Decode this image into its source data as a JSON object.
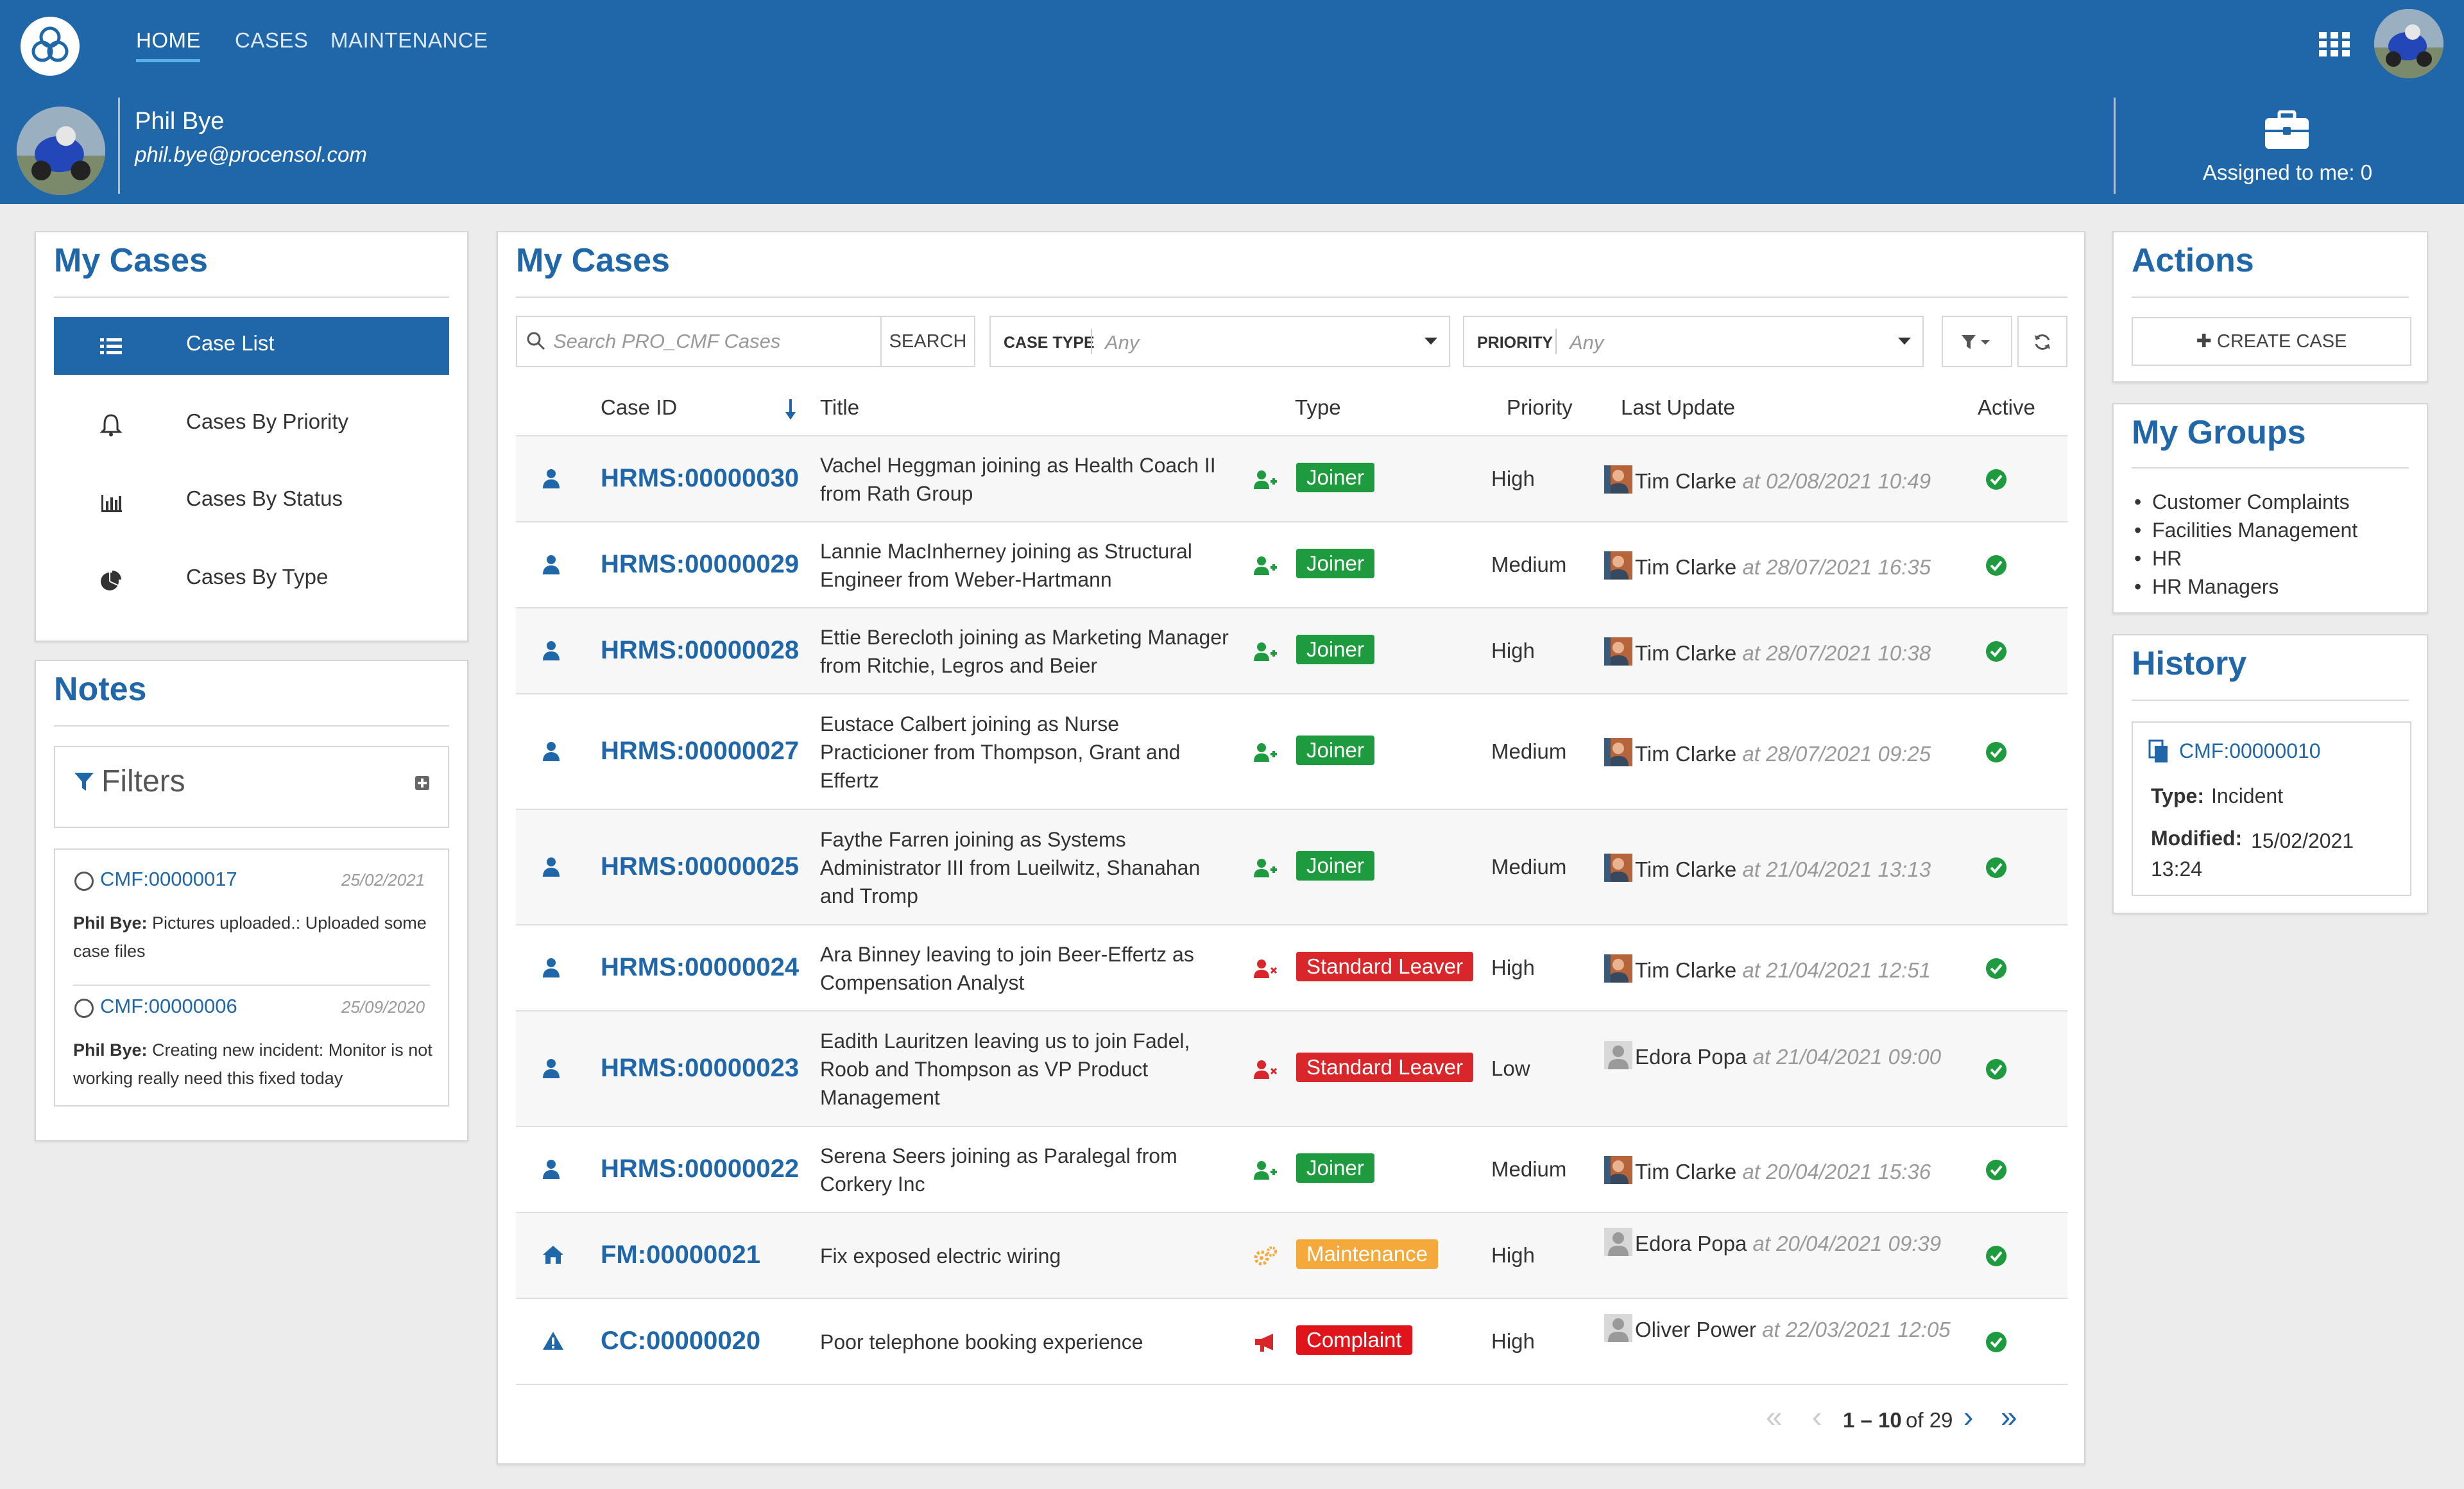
{
  "nav": {
    "items": [
      {
        "label": "HOME",
        "active": true
      },
      {
        "label": "CASES",
        "active": false
      },
      {
        "label": "MAINTENANCE",
        "active": false
      }
    ]
  },
  "user": {
    "name": "Phil Bye",
    "email": "phil.bye@procensol.com",
    "assigned_label": "Assigned to me: 0"
  },
  "sidebar": {
    "title": "My Cases",
    "items": [
      {
        "label": "Case List",
        "icon": "list-icon",
        "selected": true
      },
      {
        "label": "Cases By Priority",
        "icon": "bell-icon",
        "selected": false
      },
      {
        "label": "Cases By Status",
        "icon": "bar-chart-icon",
        "selected": false
      },
      {
        "label": "Cases By Type",
        "icon": "pie-chart-icon",
        "selected": false
      }
    ]
  },
  "notes": {
    "title": "Notes",
    "filters_label": "Filters",
    "items": [
      {
        "case": "CMF:00000017",
        "date": "25/02/2021",
        "author": "Phil Bye:",
        "text": "Pictures uploaded.: Uploaded some case files"
      },
      {
        "case": "CMF:00000006",
        "date": "25/09/2020",
        "author": "Phil Bye:",
        "text": "Creating new incident: Monitor is not working really need this fixed today"
      }
    ]
  },
  "main": {
    "title": "My Cases",
    "search_placeholder": "Search PRO_CMF Cases",
    "search_button": "SEARCH",
    "case_type_label": "CASE TYPE",
    "case_type_value": "Any",
    "priority_label": "PRIORITY",
    "priority_value": "Any",
    "columns": [
      "Case ID",
      "Title",
      "Type",
      "Priority",
      "Last Update",
      "Active"
    ],
    "rows": [
      {
        "icon": "person-icon",
        "id": "HRMS:00000030",
        "title": "Vachel Heggman joining as Health Coach II from Rath Group",
        "type_icon": "user-plus-icon",
        "type": "Joiner",
        "type_color": "#1e9b3e",
        "priority": "High",
        "user": "Tim Clarke",
        "at": "at 02/08/2021 10:49",
        "user_avatar": "photo"
      },
      {
        "icon": "person-icon",
        "id": "HRMS:00000029",
        "title": "Lannie MacInherney joining as Structural Engineer from Weber-Hartmann",
        "type_icon": "user-plus-icon",
        "type": "Joiner",
        "type_color": "#1e9b3e",
        "priority": "Medium",
        "user": "Tim Clarke",
        "at": "at 28/07/2021 16:35",
        "user_avatar": "photo"
      },
      {
        "icon": "person-icon",
        "id": "HRMS:00000028",
        "title": "Ettie Berecloth joining as Marketing Manager from Ritchie, Legros and Beier",
        "type_icon": "user-plus-icon",
        "type": "Joiner",
        "type_color": "#1e9b3e",
        "priority": "High",
        "user": "Tim Clarke",
        "at": "at 28/07/2021 10:38",
        "user_avatar": "photo"
      },
      {
        "icon": "person-icon",
        "id": "HRMS:00000027",
        "title": "Eustace Calbert joining as Nurse Practicioner from Thompson, Grant and Effertz",
        "type_icon": "user-plus-icon",
        "type": "Joiner",
        "type_color": "#1e9b3e",
        "priority": "Medium",
        "user": "Tim Clarke",
        "at": "at 28/07/2021 09:25",
        "user_avatar": "photo"
      },
      {
        "icon": "person-icon",
        "id": "HRMS:00000025",
        "title": "Faythe Farren joining as Systems Administrator III from Lueilwitz, Shanahan and Tromp",
        "type_icon": "user-plus-icon",
        "type": "Joiner",
        "type_color": "#1e9b3e",
        "priority": "Medium",
        "user": "Tim Clarke",
        "at": "at 21/04/2021 13:13",
        "user_avatar": "photo"
      },
      {
        "icon": "person-icon",
        "id": "HRMS:00000024",
        "title": "Ara Binney leaving to join Beer-Effertz as Compensation Analyst",
        "type_icon": "user-x-icon",
        "type": "Standard Leaver",
        "type_color": "#d9262a",
        "priority": "High",
        "user": "Tim Clarke",
        "at": "at 21/04/2021 12:51",
        "user_avatar": "photo"
      },
      {
        "icon": "person-icon",
        "id": "HRMS:00000023",
        "title": "Eadith Lauritzen leaving us to join Fadel, Roob and Thompson as VP Product Management",
        "type_icon": "user-x-icon",
        "type": "Standard Leaver",
        "type_color": "#d9262a",
        "priority": "Low",
        "user": "Edora Popa",
        "at": "at 21/04/2021 09:00",
        "user_avatar": "default"
      },
      {
        "icon": "person-icon",
        "id": "HRMS:00000022",
        "title": "Serena Seers joining as Paralegal from Corkery Inc",
        "type_icon": "user-plus-icon",
        "type": "Joiner",
        "type_color": "#1e9b3e",
        "priority": "Medium",
        "user": "Tim Clarke",
        "at": "at 20/04/2021 15:36",
        "user_avatar": "photo"
      },
      {
        "icon": "home-icon",
        "id": "FM:00000021",
        "title": "Fix exposed electric wiring",
        "type_icon": "cogs-icon",
        "type": "Maintenance",
        "type_color": "#f4a93a",
        "priority": "High",
        "user": "Edora Popa",
        "at": "at 20/04/2021 09:39",
        "user_avatar": "default"
      },
      {
        "icon": "warning-icon",
        "id": "CC:00000020",
        "title": "Poor telephone booking experience",
        "type_icon": "megaphone-icon",
        "type": "Complaint",
        "type_color": "#e0151c",
        "priority": "High",
        "user": "Oliver Power",
        "at": "at 22/03/2021 12:05",
        "user_avatar": "default"
      }
    ],
    "pager": {
      "range": "1 – 10",
      "of": "of 29"
    }
  },
  "actions": {
    "title": "Actions",
    "create_label": "CREATE CASE"
  },
  "groups": {
    "title": "My Groups",
    "items": [
      "Customer Complaints",
      "Facilities Management",
      "HR",
      "HR Managers"
    ]
  },
  "history": {
    "title": "History",
    "case": "CMF:00000010",
    "type_label": "Type:",
    "type_value": "Incident",
    "modified_label": "Modified:",
    "modified_value": "15/02/2021 13:24"
  },
  "colors": {
    "brand": "#1f67a8",
    "active": "#1e9b3e"
  }
}
